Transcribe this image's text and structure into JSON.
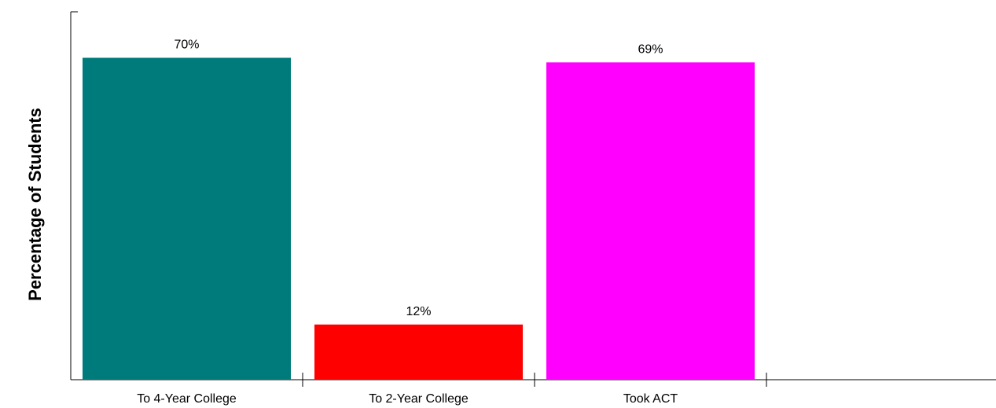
{
  "chart_data": {
    "type": "bar",
    "title": "",
    "xlabel": "",
    "ylabel": "Percentage of Students",
    "ylim": [
      0,
      80
    ],
    "grid": false,
    "legend": "none",
    "categories": [
      "To 4-Year College",
      "To 2-Year College",
      "Took ACT"
    ],
    "values": [
      70,
      12,
      69
    ],
    "data_labels": [
      "70%",
      "12%",
      "69%"
    ],
    "colors": [
      "#007b7b",
      "#ff0000",
      "#ff00ff"
    ]
  }
}
